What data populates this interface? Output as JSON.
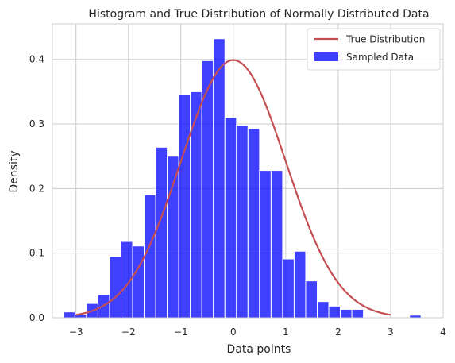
{
  "chart_data": {
    "type": "bar",
    "title": "Histogram and True Distribution of Normally Distributed Data",
    "xlabel": "Data points",
    "ylabel": "Density",
    "xlim": [
      -3.45,
      4.0
    ],
    "ylim": [
      0,
      0.455
    ],
    "xticks": [
      -3,
      -2,
      -1,
      0,
      1,
      2,
      3,
      4
    ],
    "yticks": [
      0.0,
      0.1,
      0.2,
      0.3,
      0.4
    ],
    "grid": true,
    "legend_position": "top-right",
    "bin_edges": [
      -3.24,
      -3.02,
      -2.8,
      -2.58,
      -2.36,
      -2.14,
      -1.92,
      -1.7,
      -1.48,
      -1.26,
      -1.04,
      -0.82,
      -0.6,
      -0.38,
      -0.16,
      0.06,
      0.28,
      0.5,
      0.72,
      0.94,
      1.16,
      1.38,
      1.6,
      1.82,
      2.04,
      2.26,
      2.48,
      2.7,
      2.92,
      3.14,
      3.36,
      3.58,
      3.8
    ],
    "series": [
      {
        "name": "Sampled Data",
        "kind": "histogram",
        "color": "#0000ff",
        "values": [
          0.009,
          0.005,
          0.022,
          0.036,
          0.095,
          0.118,
          0.111,
          0.19,
          0.264,
          0.25,
          0.345,
          0.35,
          0.398,
          0.432,
          0.31,
          0.298,
          0.293,
          0.228,
          0.228,
          0.091,
          0.103,
          0.057,
          0.025,
          0.018,
          0.013,
          0.013,
          0.0,
          0.0,
          0.0,
          0.0,
          0.004,
          0.0
        ]
      },
      {
        "name": "True Distribution",
        "kind": "line",
        "color": "#c44e52",
        "function": "normal_pdf",
        "mean": 0,
        "std": 1,
        "x_range": [
          -3,
          3
        ]
      }
    ]
  }
}
